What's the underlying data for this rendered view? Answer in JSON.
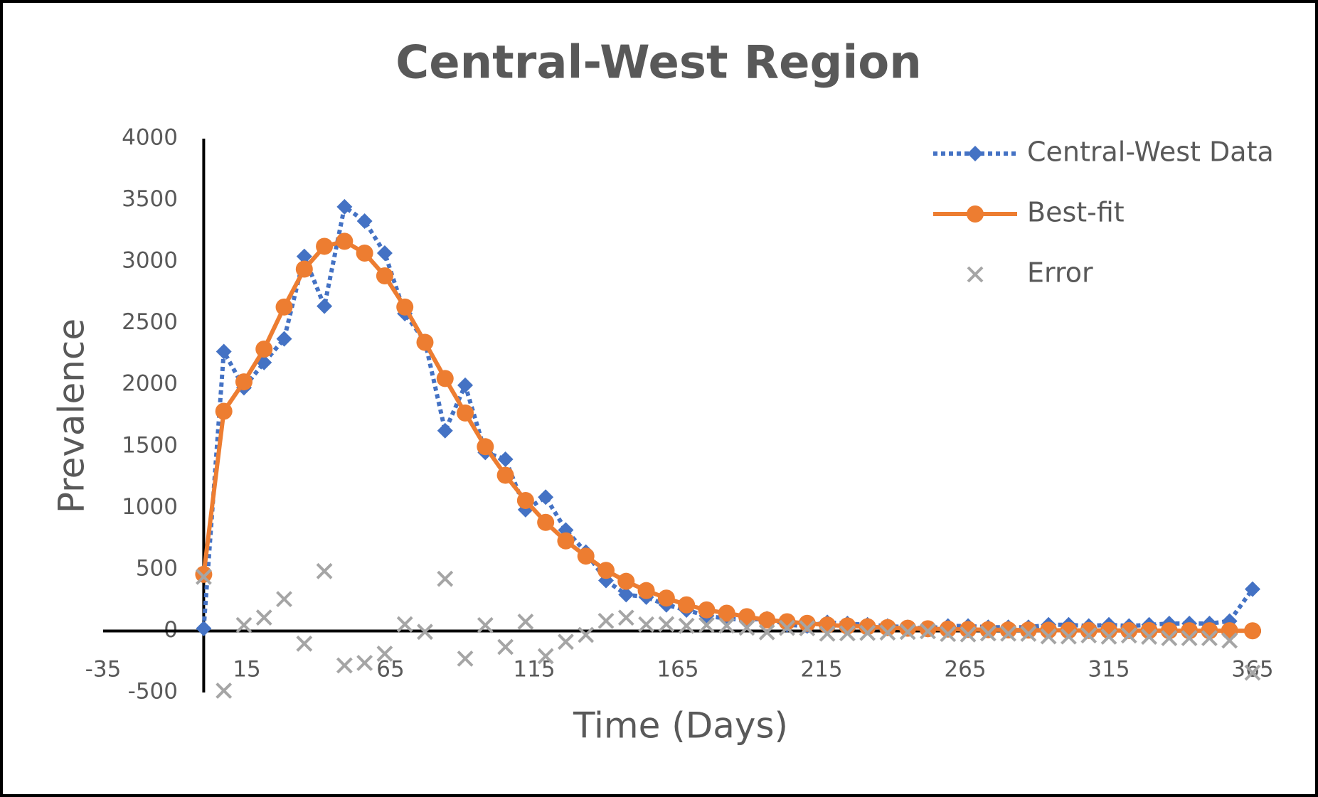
{
  "chart_data": {
    "type": "line",
    "title": "Central-West Region",
    "x_label": "Time (Days)",
    "y_label": "Prevalence",
    "x": [
      0,
      7,
      14,
      21,
      28,
      35,
      42,
      49,
      56,
      63,
      70,
      77,
      84,
      91,
      98,
      105,
      112,
      119,
      126,
      133,
      140,
      147,
      154,
      161,
      168,
      175,
      182,
      189,
      196,
      203,
      210,
      217,
      224,
      231,
      238,
      245,
      252,
      259,
      266,
      273,
      280,
      287,
      294,
      301,
      308,
      315,
      322,
      329,
      336,
      343,
      350,
      357,
      365
    ],
    "series": [
      {
        "name": "Central-West Data",
        "color": "#4472c4",
        "style": "dotted",
        "marker": "diamond",
        "values": [
          20,
          2270,
          1976,
          2181,
          2373,
          3043,
          2639,
          3446,
          3330,
          3070,
          2578,
          2352,
          1627,
          1996,
          1450,
          1395,
          985,
          1087,
          820,
          640,
          410,
          295,
          275,
          212,
          170,
          123,
          100,
          90,
          100,
          50,
          40,
          70,
          60,
          50,
          40,
          30,
          20,
          40,
          40,
          30,
          30,
          30,
          50,
          50,
          40,
          50,
          40,
          50,
          60,
          60,
          60,
          80,
          340
        ]
      },
      {
        "name": "Best-fit",
        "color": "#ed7d31",
        "style": "solid",
        "marker": "circle",
        "values": [
          460,
          1785,
          2024,
          2290,
          2632,
          2940,
          3125,
          3166,
          3070,
          2885,
          2632,
          2345,
          2051,
          1771,
          1497,
          1265,
          1060,
          882,
          732,
          608,
          492,
          403,
          328,
          267,
          212,
          171,
          144,
          116,
          89,
          75,
          62,
          48,
          41,
          34,
          27,
          22,
          18,
          15,
          12,
          10,
          8,
          7,
          6,
          5,
          4,
          4,
          3,
          3,
          2,
          2,
          2,
          2,
          1
        ]
      },
      {
        "name": "Error",
        "color": "#a5a5a5",
        "style": "none",
        "marker": "x",
        "values": [
          440,
          -485,
          48,
          109,
          259,
          -103,
          486,
          -280,
          -260,
          -185,
          54,
          -7,
          424,
          -225,
          47,
          -130,
          75,
          -205,
          -88,
          -32,
          82,
          108,
          53,
          55,
          42,
          48,
          44,
          26,
          -11,
          25,
          22,
          -22,
          -19,
          -16,
          -13,
          -8,
          -2,
          -25,
          -28,
          -20,
          -22,
          -23,
          -44,
          -45,
          -36,
          -46,
          -37,
          -47,
          -58,
          -58,
          -58,
          -78,
          -339
        ]
      }
    ],
    "xlim": [
      -35,
      365
    ],
    "xticks": [
      -35,
      15,
      65,
      115,
      165,
      215,
      265,
      315,
      365
    ],
    "ylim": [
      -500,
      4000
    ],
    "yticks": [
      -500,
      0,
      500,
      1000,
      1500,
      2000,
      2500,
      3000,
      3500,
      4000
    ],
    "grid": false,
    "legend": "top-right"
  }
}
